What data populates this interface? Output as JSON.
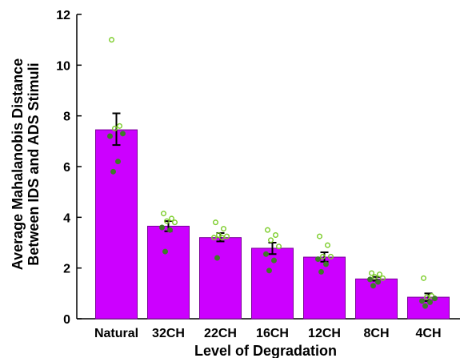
{
  "chart_data": {
    "type": "bar",
    "xlabel": "Level of Degradation",
    "ylabel_lines": [
      "Average Mahalanobis Distance",
      "Between IDS and ADS Stimuli"
    ],
    "ylim": [
      0,
      12
    ],
    "yticks": [
      0,
      2,
      4,
      6,
      8,
      10,
      12
    ],
    "categories": [
      "Natural",
      "32CH",
      "22CH",
      "16CH",
      "12CH",
      "8CH",
      "4CH"
    ],
    "values": [
      7.45,
      3.65,
      3.2,
      2.78,
      2.43,
      1.57,
      0.85
    ],
    "error_low": [
      6.85,
      3.45,
      3.05,
      2.55,
      2.25,
      1.5,
      0.7
    ],
    "error_high": [
      8.1,
      3.85,
      3.38,
      3.0,
      2.62,
      1.65,
      1.0
    ],
    "points": [
      [
        11.0,
        7.6,
        7.5,
        7.3,
        7.2,
        6.2,
        5.8
      ],
      [
        4.15,
        3.95,
        3.85,
        3.8,
        3.6,
        3.5,
        2.65
      ],
      [
        3.8,
        3.55,
        3.3,
        3.25,
        3.2,
        3.2,
        2.4
      ],
      [
        3.5,
        3.3,
        3.1,
        2.85,
        2.55,
        2.3,
        1.9
      ],
      [
        3.25,
        2.9,
        2.45,
        2.45,
        2.35,
        2.15,
        1.85
      ],
      [
        1.8,
        1.75,
        1.65,
        1.6,
        1.55,
        1.45,
        1.3
      ],
      [
        1.6,
        0.9,
        0.85,
        0.8,
        0.7,
        0.65,
        0.5
      ]
    ],
    "colors": {
      "bar_fill": "#cc00ff",
      "bar_stroke": "#7a0099",
      "point_light": "#7ccd2a",
      "point_dark": "#3f7a2a"
    },
    "grid": false,
    "legend": "none"
  }
}
